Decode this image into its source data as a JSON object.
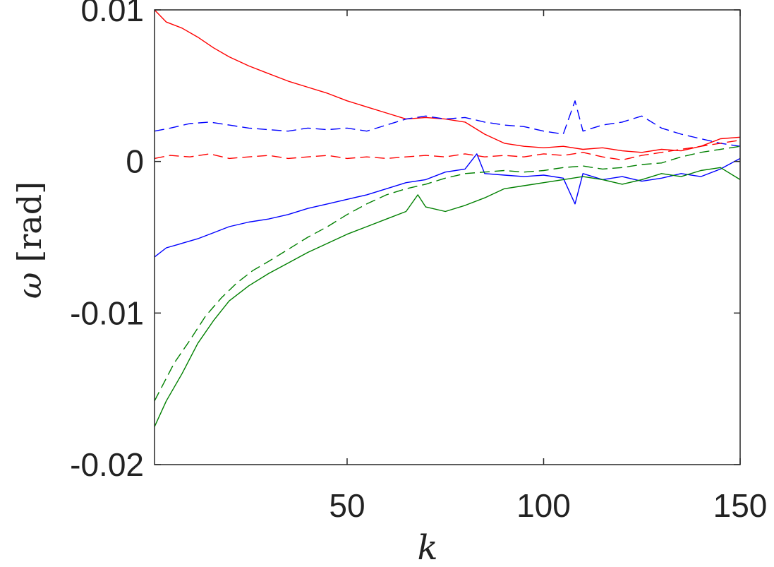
{
  "chart_data": {
    "type": "line",
    "xlabel": "k",
    "ylabel": "ω [rad]",
    "ylabel_symbol": "ω",
    "ylabel_unit": "[rad]",
    "xlim": [
      1,
      150
    ],
    "ylim": [
      -0.02,
      0.01
    ],
    "xticks": [
      50,
      100,
      150
    ],
    "xtick_labels": [
      "50",
      "100",
      "150"
    ],
    "yticks": [
      -0.02,
      -0.01,
      0,
      0.01
    ],
    "ytick_labels": [
      "-0.02",
      "-0.01",
      "0",
      "0.01"
    ],
    "grid": false,
    "series": [
      {
        "color": "#ff0000",
        "style": "solid",
        "x": [
          1,
          4,
          8,
          12,
          16,
          20,
          25,
          30,
          35,
          40,
          45,
          50,
          55,
          60,
          65,
          70,
          75,
          80,
          85,
          90,
          95,
          100,
          105,
          110,
          115,
          120,
          125,
          130,
          135,
          140,
          145,
          150
        ],
        "values": [
          0.01,
          0.0092,
          0.0088,
          0.0082,
          0.0075,
          0.0069,
          0.0063,
          0.0058,
          0.0053,
          0.0049,
          0.0045,
          0.004,
          0.0036,
          0.0032,
          0.0028,
          0.0029,
          0.0028,
          0.0026,
          0.0018,
          0.0012,
          0.001,
          0.0009,
          0.001,
          0.0008,
          0.0009,
          0.0007,
          0.0006,
          0.0008,
          0.0007,
          0.001,
          0.0015,
          0.0016
        ]
      },
      {
        "color": "#0000ff",
        "style": "dashed",
        "x": [
          1,
          5,
          10,
          15,
          20,
          25,
          30,
          35,
          40,
          45,
          50,
          55,
          60,
          65,
          70,
          75,
          80,
          85,
          90,
          95,
          100,
          105,
          108,
          110,
          115,
          120,
          125,
          130,
          135,
          140,
          145,
          150
        ],
        "values": [
          0.002,
          0.0022,
          0.0025,
          0.0026,
          0.0024,
          0.0022,
          0.0021,
          0.002,
          0.0022,
          0.0021,
          0.0022,
          0.002,
          0.0024,
          0.0028,
          0.003,
          0.0028,
          0.0029,
          0.0026,
          0.0024,
          0.0023,
          0.002,
          0.0018,
          0.004,
          0.002,
          0.0024,
          0.0026,
          0.003,
          0.0022,
          0.0018,
          0.0015,
          0.0012,
          0.001
        ]
      },
      {
        "color": "#ff0000",
        "style": "dashed",
        "x": [
          1,
          5,
          10,
          15,
          20,
          25,
          30,
          35,
          40,
          45,
          50,
          55,
          60,
          65,
          70,
          75,
          80,
          85,
          90,
          95,
          100,
          105,
          110,
          115,
          120,
          125,
          130,
          135,
          140,
          145,
          150
        ],
        "values": [
          0.0002,
          0.0004,
          0.0003,
          0.0005,
          0.0002,
          0.0003,
          0.0004,
          0.0002,
          0.0003,
          0.0004,
          0.0002,
          0.0003,
          0.0002,
          0.0003,
          0.0004,
          0.0003,
          0.0005,
          0.0003,
          0.0004,
          0.0003,
          0.0005,
          0.0004,
          0.0006,
          0.0003,
          0.0001,
          0.0004,
          0.0006,
          0.0008,
          0.001,
          0.0012,
          0.0014
        ]
      },
      {
        "color": "#0000ff",
        "style": "solid",
        "x": [
          1,
          4,
          8,
          12,
          16,
          20,
          25,
          30,
          35,
          40,
          45,
          50,
          55,
          60,
          65,
          70,
          75,
          80,
          83,
          85,
          90,
          95,
          100,
          105,
          108,
          110,
          115,
          120,
          125,
          130,
          135,
          140,
          145,
          150
        ],
        "values": [
          -0.0063,
          -0.0057,
          -0.0054,
          -0.0051,
          -0.0047,
          -0.0043,
          -0.004,
          -0.0038,
          -0.0035,
          -0.0031,
          -0.0028,
          -0.0025,
          -0.0022,
          -0.0018,
          -0.0014,
          -0.0012,
          -0.0007,
          -0.0005,
          0.0005,
          -0.0008,
          -0.0009,
          -0.001,
          -0.0009,
          -0.0011,
          -0.0028,
          -0.0008,
          -0.0012,
          -0.001,
          -0.0013,
          -0.0011,
          -0.0008,
          -0.001,
          -0.0005,
          0.0002
        ]
      },
      {
        "color": "#008000",
        "style": "dashed",
        "x": [
          1,
          3,
          6,
          10,
          14,
          18,
          22,
          26,
          30,
          35,
          40,
          45,
          50,
          55,
          60,
          65,
          70,
          75,
          80,
          85,
          90,
          95,
          100,
          105,
          110,
          115,
          120,
          125,
          130,
          135,
          140,
          145,
          150
        ],
        "values": [
          -0.0158,
          -0.0148,
          -0.0133,
          -0.0118,
          -0.0102,
          -0.009,
          -0.008,
          -0.0072,
          -0.0066,
          -0.0058,
          -0.005,
          -0.0043,
          -0.0035,
          -0.0028,
          -0.0022,
          -0.0018,
          -0.0015,
          -0.0011,
          -0.0008,
          -0.0007,
          -0.0006,
          -0.0007,
          -0.0006,
          -0.0004,
          -0.0003,
          -0.0005,
          -0.0004,
          -0.0002,
          -0.0001,
          0.0003,
          0.0006,
          0.0008,
          0.001
        ]
      },
      {
        "color": "#008000",
        "style": "solid",
        "x": [
          1,
          4,
          8,
          12,
          16,
          20,
          25,
          30,
          35,
          40,
          45,
          50,
          55,
          60,
          65,
          68,
          70,
          75,
          80,
          85,
          90,
          95,
          100,
          105,
          110,
          115,
          120,
          125,
          130,
          135,
          140,
          145,
          150
        ],
        "values": [
          -0.0175,
          -0.0158,
          -0.014,
          -0.012,
          -0.0105,
          -0.0092,
          -0.0082,
          -0.0074,
          -0.0067,
          -0.006,
          -0.0054,
          -0.0048,
          -0.0043,
          -0.0038,
          -0.0033,
          -0.0022,
          -0.003,
          -0.0033,
          -0.0029,
          -0.0024,
          -0.0018,
          -0.0016,
          -0.0014,
          -0.0012,
          -0.001,
          -0.0012,
          -0.0015,
          -0.0012,
          -0.0008,
          -0.001,
          -0.0006,
          -0.0004,
          -0.0012
        ]
      }
    ]
  }
}
